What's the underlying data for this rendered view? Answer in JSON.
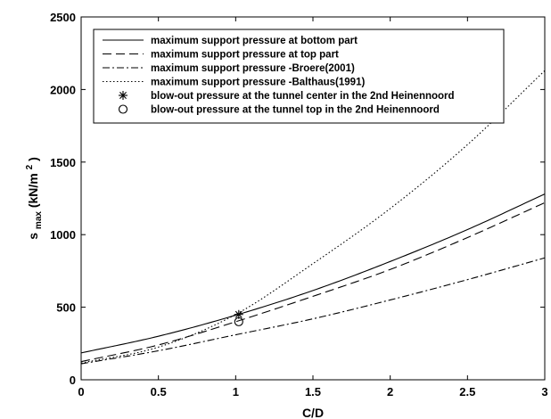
{
  "chart_data": {
    "type": "line",
    "xlabel": "C/D",
    "ylabel": {
      "base": "s",
      "sub": "max",
      "unit": "(kN/m",
      "sup": "2",
      "close": ")"
    },
    "xlim": [
      0,
      3
    ],
    "ylim": [
      0,
      2500
    ],
    "xticks": [
      "0",
      "0.5",
      "1",
      "1.5",
      "2",
      "2.5",
      "3"
    ],
    "yticks": [
      "0",
      "500",
      "1000",
      "1500",
      "2000",
      "2500"
    ],
    "grid": false,
    "legend_position": "top-left",
    "series": [
      {
        "name": "maximum support pressure at bottom part",
        "style": "solid",
        "x": [
          0,
          0.5,
          1.0,
          1.5,
          2.0,
          2.5,
          3.0
        ],
        "y": [
          185,
          300,
          445,
          615,
          815,
          1035,
          1280
        ]
      },
      {
        "name": "maximum support pressure at top part",
        "style": "dashed",
        "x": [
          0,
          0.5,
          1.0,
          1.5,
          2.0,
          2.5,
          3.0
        ],
        "y": [
          125,
          240,
          400,
          575,
          760,
          980,
          1220
        ]
      },
      {
        "name": "maximum support pressure -Broere(2001)",
        "style": "dashdot",
        "x": [
          0,
          0.5,
          1.0,
          1.5,
          2.0,
          2.5,
          3.0
        ],
        "y": [
          110,
          200,
          310,
          420,
          550,
          690,
          840
        ]
      },
      {
        "name": "maximum support pressure -Balthaus(1991)",
        "style": "dotted",
        "x": [
          0,
          0.5,
          1.0,
          1.5,
          2.0,
          2.5,
          3.0
        ],
        "y": [
          115,
          225,
          450,
          800,
          1180,
          1620,
          2130
        ]
      }
    ],
    "points": [
      {
        "name": "blow-out pressure at the tunnel center in the 2nd Heinennoord",
        "marker": "asterisk",
        "x": 1.02,
        "y": 450
      },
      {
        "name": "blow-out pressure at the tunnel top in the 2nd Heinennoord",
        "marker": "circle",
        "x": 1.02,
        "y": 400
      }
    ]
  }
}
